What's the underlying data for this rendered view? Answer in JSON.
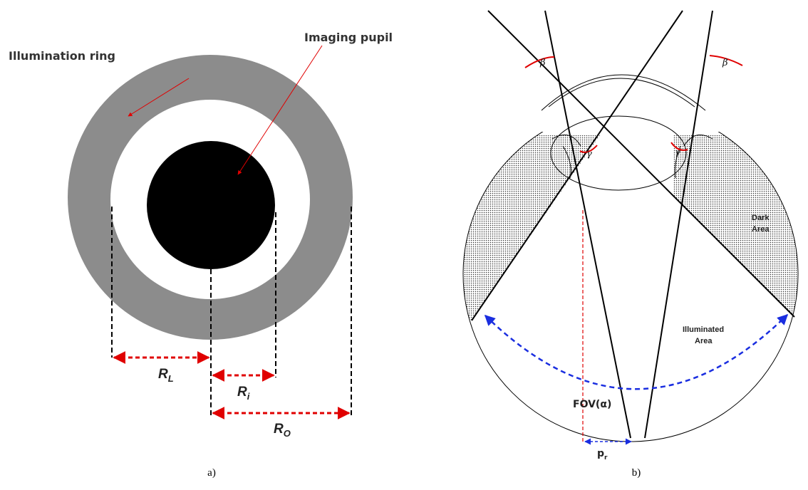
{
  "panel_a": {
    "ring_label": "Illumination ring",
    "pupil_label": "Imaging pupil",
    "dimensions": [
      {
        "symbol": "R",
        "subscript": "L"
      },
      {
        "symbol": "R",
        "subscript": "i"
      },
      {
        "symbol": "R",
        "subscript": "O"
      }
    ],
    "caption": "a)"
  },
  "panel_b": {
    "beta": [
      "β",
      "β"
    ],
    "gamma": [
      "γ",
      "γ"
    ],
    "dark_area": [
      "Dark",
      "Area"
    ],
    "illuminated_area": [
      "Illuminated",
      "Area"
    ],
    "fov": "FOV(α)",
    "p": {
      "symbol": "p",
      "subscript": "r"
    },
    "caption": "b)"
  }
}
